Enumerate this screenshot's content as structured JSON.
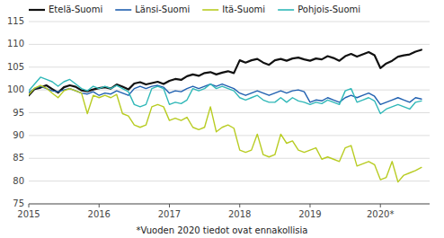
{
  "chart_data": {
    "type": "line",
    "footnote": "*Vuoden 2020 tiedot ovat ennakollisia",
    "x": [
      2015,
      2015.0833,
      2015.1667,
      2015.25,
      2015.3333,
      2015.4167,
      2015.5,
      2015.5833,
      2015.6667,
      2015.75,
      2015.8333,
      2015.9167,
      2016,
      2016.0833,
      2016.1667,
      2016.25,
      2016.3333,
      2016.4167,
      2016.5,
      2016.5833,
      2016.6667,
      2016.75,
      2016.8333,
      2016.9167,
      2017,
      2017.0833,
      2017.1667,
      2017.25,
      2017.3333,
      2017.4167,
      2017.5,
      2017.5833,
      2017.6667,
      2017.75,
      2017.8333,
      2017.9167,
      2018,
      2018.0833,
      2018.1667,
      2018.25,
      2018.3333,
      2018.4167,
      2018.5,
      2018.5833,
      2018.6667,
      2018.75,
      2018.8333,
      2018.9167,
      2019,
      2019.0833,
      2019.1667,
      2019.25,
      2019.3333,
      2019.4167,
      2019.5,
      2019.5833,
      2019.6667,
      2019.75,
      2019.8333,
      2019.9167,
      2020,
      2020.0833,
      2020.1667,
      2020.25,
      2020.3333,
      2020.4167,
      2020.5,
      2020.5833
    ],
    "xlim": [
      2015.0,
      2020.7
    ],
    "xticks": [
      2015,
      2016,
      2017,
      2018,
      2019,
      {
        "value": 2020,
        "label": "2020*"
      }
    ],
    "ylim": [
      75,
      115
    ],
    "yticks": [
      75,
      80,
      85,
      90,
      95,
      100,
      105,
      110,
      115
    ],
    "grid": true,
    "legend": "top-left",
    "series": [
      {
        "name": "Etelä-Suomi",
        "color": "#111111",
        "values": [
          98.8,
          100.2,
          100.5,
          101.0,
          100.2,
          99.4,
          100.6,
          101.0,
          100.7,
          99.9,
          99.7,
          100.1,
          100.4,
          100.6,
          100.3,
          101.2,
          100.7,
          100.1,
          101.4,
          101.7,
          101.2,
          101.5,
          101.8,
          101.3,
          102.0,
          102.4,
          102.2,
          103.0,
          103.4,
          103.1,
          103.7,
          103.9,
          103.4,
          103.8,
          104.1,
          103.7,
          106.5,
          106.0,
          106.5,
          106.8,
          106.0,
          105.5,
          106.5,
          106.8,
          106.4,
          106.9,
          107.1,
          106.7,
          106.4,
          106.9,
          106.7,
          107.4,
          107.0,
          106.4,
          107.4,
          107.9,
          107.3,
          107.8,
          108.3,
          107.6,
          104.8,
          105.8,
          106.4,
          107.3,
          107.6,
          107.8,
          108.4,
          108.8
        ]
      },
      {
        "name": "Länsi-Suomi",
        "color": "#2060b0",
        "values": [
          99.4,
          100.3,
          100.8,
          100.3,
          99.8,
          99.6,
          100.0,
          100.3,
          99.8,
          99.3,
          99.1,
          99.6,
          98.8,
          99.3,
          99.1,
          99.8,
          99.3,
          98.8,
          100.3,
          100.8,
          100.3,
          100.8,
          101.0,
          100.6,
          99.3,
          99.8,
          99.6,
          100.3,
          100.8,
          100.3,
          100.8,
          101.3,
          100.8,
          101.3,
          100.8,
          100.3,
          99.3,
          98.8,
          99.3,
          99.8,
          99.3,
          98.8,
          99.3,
          99.8,
          99.3,
          99.8,
          100.0,
          99.6,
          97.3,
          97.8,
          97.6,
          98.3,
          97.8,
          97.3,
          98.3,
          98.8,
          98.3,
          98.8,
          99.3,
          98.6,
          96.8,
          97.3,
          97.8,
          98.3,
          97.8,
          97.3,
          98.3,
          98.0
        ]
      },
      {
        "name": "Itä-Suomi",
        "color": "#b8cc22",
        "values": [
          99.0,
          100.4,
          101.0,
          100.4,
          99.3,
          98.3,
          99.8,
          100.3,
          99.8,
          99.3,
          94.8,
          98.8,
          98.3,
          98.8,
          98.3,
          99.0,
          94.8,
          94.3,
          92.3,
          91.8,
          92.3,
          96.3,
          96.8,
          96.3,
          93.3,
          93.8,
          93.3,
          94.0,
          91.8,
          91.3,
          91.8,
          96.3,
          90.8,
          91.8,
          92.3,
          91.6,
          86.8,
          86.3,
          86.8,
          90.3,
          85.8,
          85.3,
          85.8,
          90.3,
          88.3,
          88.8,
          86.8,
          86.3,
          86.8,
          87.3,
          84.8,
          85.3,
          84.8,
          84.3,
          87.3,
          87.8,
          83.3,
          83.8,
          84.3,
          83.6,
          80.3,
          80.8,
          84.3,
          79.8,
          81.3,
          81.8,
          82.3,
          83.0
        ]
      },
      {
        "name": "Pohjois-Suomi",
        "color": "#30b8b8",
        "values": [
          99.8,
          101.3,
          102.8,
          102.3,
          101.8,
          100.8,
          101.8,
          102.3,
          101.3,
          100.3,
          99.8,
          100.8,
          100.3,
          100.8,
          100.3,
          101.0,
          100.3,
          99.6,
          96.8,
          96.3,
          96.8,
          100.3,
          100.8,
          100.3,
          96.8,
          97.3,
          97.0,
          97.8,
          100.3,
          99.8,
          100.3,
          101.3,
          100.3,
          100.8,
          100.3,
          99.8,
          98.3,
          97.8,
          98.3,
          98.8,
          97.8,
          97.3,
          97.3,
          98.3,
          97.3,
          98.3,
          97.6,
          97.3,
          96.8,
          97.3,
          97.0,
          97.8,
          97.3,
          96.8,
          99.8,
          100.3,
          97.3,
          97.8,
          98.3,
          97.6,
          94.8,
          95.8,
          96.3,
          96.8,
          96.3,
          95.8,
          97.3,
          97.6
        ]
      }
    ]
  }
}
